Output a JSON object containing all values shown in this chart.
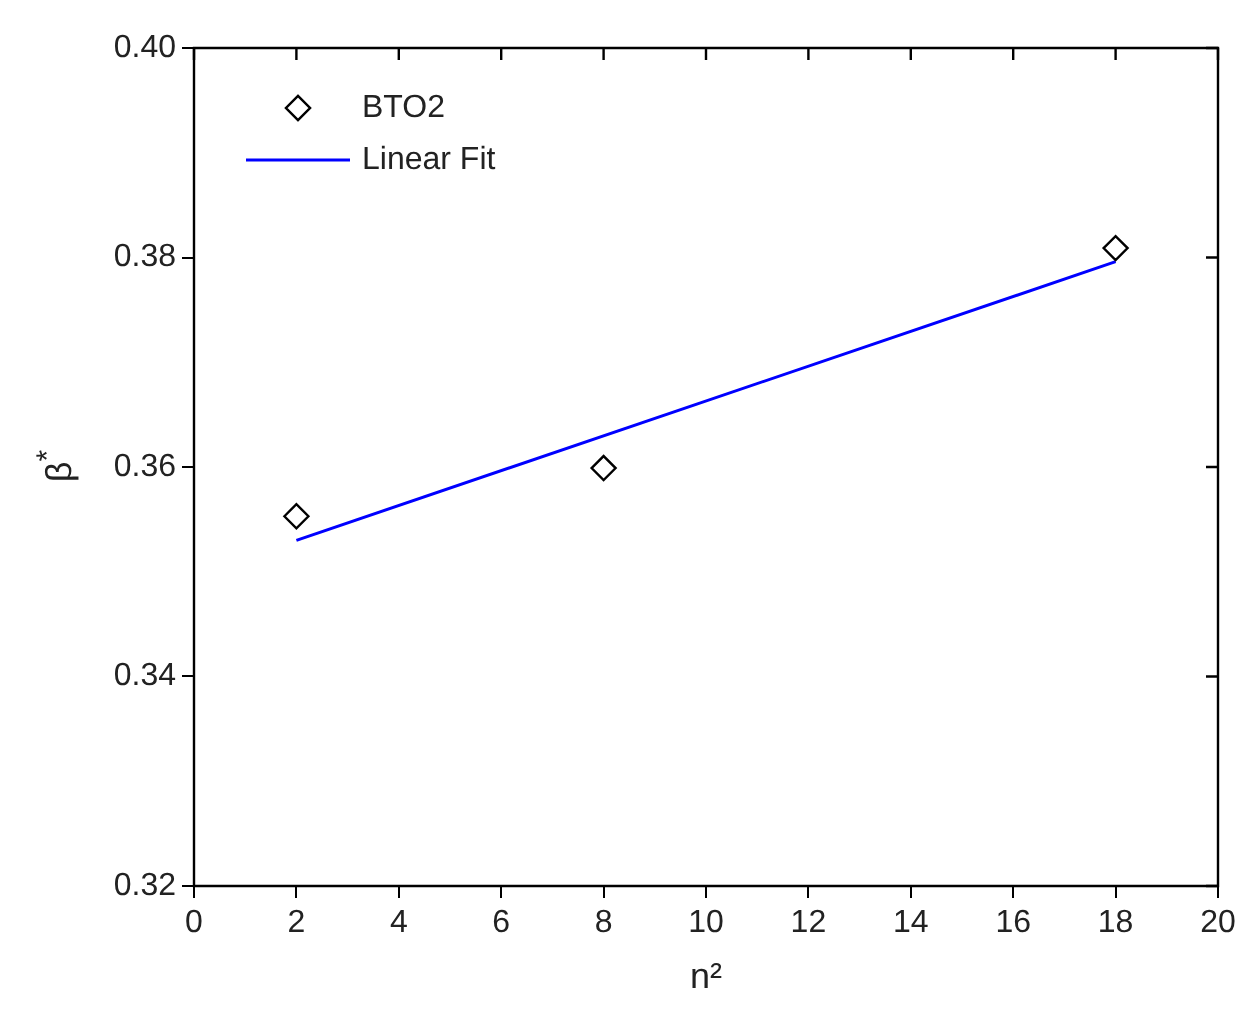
{
  "chart_data": {
    "type": "scatter",
    "xlabel": "n²",
    "ylabel": "β$^{*}$",
    "xlim": [
      0,
      20
    ],
    "xticks": [
      0,
      2,
      4,
      6,
      8,
      10,
      12,
      14,
      16,
      18,
      20
    ],
    "ylim": [
      0.32,
      0.4
    ],
    "yticks": [
      {
        "value": 0.32,
        "label": "0.32"
      },
      {
        "value": 0.34,
        "label": "0.34"
      },
      {
        "value": 0.36,
        "label": "0.36"
      },
      {
        "value": 0.38,
        "label": "0.38"
      },
      {
        "value": 0.4,
        "label": "0.40"
      }
    ],
    "grid": false,
    "legend": "top left",
    "series": [
      {
        "name": "BTO2",
        "marker": "diamond",
        "color": "#000000",
        "x": [
          2,
          8,
          18
        ],
        "values": [
          0.3553,
          0.3599,
          0.3809
        ]
      },
      {
        "name": "Linear Fit",
        "type": "line",
        "marker": "none",
        "color": "#0000ff",
        "x": [
          2,
          18
        ],
        "values": [
          0.353,
          0.3796
        ]
      }
    ]
  }
}
